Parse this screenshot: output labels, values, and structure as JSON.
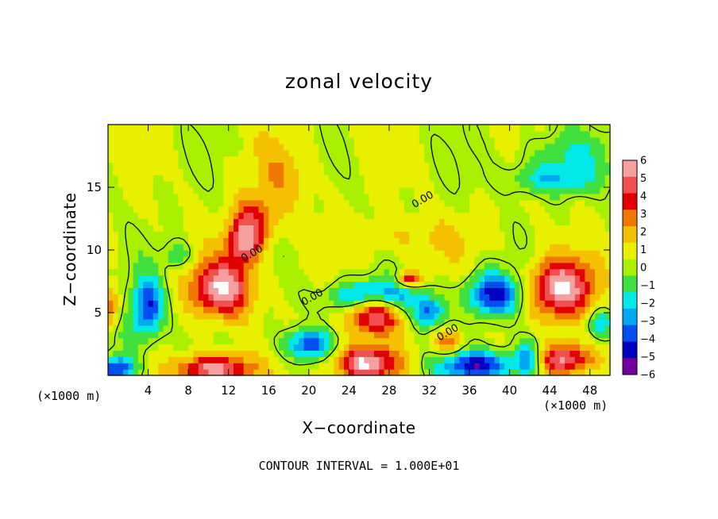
{
  "chart_data": {
    "type": "heatmap",
    "title": "zonal velocity",
    "xlabel": "X−coordinate",
    "ylabel": "Z−coordinate",
    "x_unit_left": "(×1000 m)",
    "x_unit_right": "(×1000 m)",
    "footnote": "CONTOUR INTERVAL = 1.000E+01",
    "xlim": [
      0,
      50
    ],
    "ylim": [
      0,
      20
    ],
    "x_ticks": [
      4,
      8,
      12,
      16,
      20,
      24,
      28,
      32,
      36,
      40,
      44,
      48
    ],
    "y_ticks": [
      5,
      10,
      15
    ],
    "colorbar": {
      "labels": [
        "6",
        "5",
        "4",
        "3",
        "2",
        "1",
        "0",
        "−1",
        "−2",
        "−3",
        "−4",
        "−5",
        "−6"
      ],
      "colors": [
        "#f4a0a0",
        "#f05050",
        "#e00000",
        "#f07800",
        "#f4c000",
        "#e8f000",
        "#a8f000",
        "#40e040",
        "#00e8e8",
        "#00a8f0",
        "#0050f0",
        "#0000c0",
        "#7000a0"
      ]
    },
    "contour_labels": [
      {
        "text": "0.00",
        "x": 14.5,
        "y": 9.5
      },
      {
        "text": "0.00",
        "x": 20.5,
        "y": 6.0
      },
      {
        "text": "0.00",
        "x": 31.5,
        "y": 13.8
      },
      {
        "text": "0.00",
        "x": 34.0,
        "y": 3.2
      }
    ],
    "features": [
      {
        "v": 6.0,
        "x": 11.5,
        "y": 7.0,
        "sx": 3.0,
        "sy": 2.2,
        "sat": true
      },
      {
        "v": 5.0,
        "x": 13.5,
        "y": 10.5,
        "sx": 1.6,
        "sy": 1.6
      },
      {
        "v": 3.6,
        "x": 14.5,
        "y": 12.3,
        "sx": 2.2,
        "sy": 2.0
      },
      {
        "v": -5.0,
        "x": 4.0,
        "y": 5.5,
        "sx": 1.5,
        "sy": 2.3
      },
      {
        "v": 3.0,
        "x": 0.3,
        "y": 5.5,
        "sx": 0.8,
        "sy": 1.5
      },
      {
        "v": -2.0,
        "x": 7.0,
        "y": 9.6,
        "sx": 1.5,
        "sy": 1.1
      },
      {
        "v": 6.0,
        "x": 26.5,
        "y": 5.0,
        "sx": 2.6,
        "sy": 1.6,
        "sat": true
      },
      {
        "v": -5.0,
        "x": 26.5,
        "y": 6.3,
        "sx": 4.5,
        "sy": 1.3
      },
      {
        "v": -4.0,
        "x": 32.0,
        "y": 5.0,
        "sx": 1.5,
        "sy": 1.2
      },
      {
        "v": 4.5,
        "x": 30.0,
        "y": 7.7,
        "sx": 1.2,
        "sy": 0.6
      },
      {
        "v": -5.5,
        "x": 38.5,
        "y": 6.5,
        "sx": 2.8,
        "sy": 1.7
      },
      {
        "v": 3.0,
        "x": 34.0,
        "y": 2.6,
        "sx": 1.6,
        "sy": 1.0
      },
      {
        "v": 6.0,
        "x": 45.0,
        "y": 7.0,
        "sx": 3.3,
        "sy": 2.3,
        "sat": true
      },
      {
        "v": -3.0,
        "x": 49.0,
        "y": 4.2,
        "sx": 1.2,
        "sy": 1.2
      },
      {
        "v": 6.0,
        "x": 10.5,
        "y": 0.5,
        "sx": 3.5,
        "sy": 1.2,
        "sat": true
      },
      {
        "v": 6.0,
        "x": 25.5,
        "y": 1.0,
        "sx": 3.2,
        "sy": 1.3,
        "sat": true
      },
      {
        "v": -5.5,
        "x": 1.0,
        "y": 0.5,
        "sx": 1.8,
        "sy": 1.0
      },
      {
        "v": -4.5,
        "x": 20.0,
        "y": 2.5,
        "sx": 2.4,
        "sy": 1.2
      },
      {
        "v": -5.5,
        "x": 37.0,
        "y": 0.8,
        "sx": 4.0,
        "sy": 1.2
      },
      {
        "v": 5.5,
        "x": 45.5,
        "y": 1.3,
        "sx": 3.0,
        "sy": 1.3,
        "sat": true
      },
      {
        "v": -4.0,
        "x": 42.0,
        "y": 1.5,
        "sx": 1.4,
        "sy": 1.6
      },
      {
        "v": 1.6,
        "x": 17.5,
        "y": 16.0,
        "sx": 2.8,
        "sy": 3.0
      },
      {
        "v": -2.4,
        "x": 44.0,
        "y": 15.6,
        "sx": 4.5,
        "sy": 1.2
      },
      {
        "v": -1.6,
        "x": 46.0,
        "y": 17.5,
        "sx": 6.0,
        "sy": 2.0
      },
      {
        "v": -1.2,
        "x": 2.0,
        "y": 3.0,
        "sx": 2.0,
        "sy": 2.0
      },
      {
        "v": 1.2,
        "x": 30.0,
        "y": 11.0,
        "sx": 6.0,
        "sy": 1.8
      }
    ]
  }
}
